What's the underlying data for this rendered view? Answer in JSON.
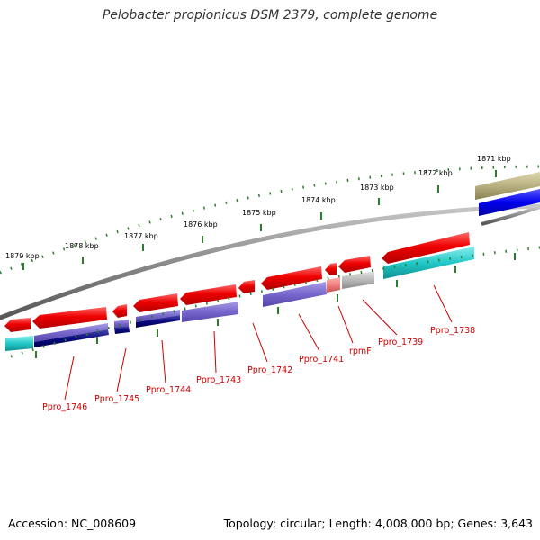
{
  "title": "Pelobacter propionicus DSM 2379, complete genome",
  "footer": {
    "accession": "Accession: NC_008609",
    "summary": "Topology: circular; Length: 4,008,000 bp; Genes: 3,643"
  },
  "colors": {
    "backbone": "#8a8a8a",
    "tick": "#2e7d2e",
    "forward_cds": "#ee0000",
    "gene_label": "#cc0000",
    "cds_purple": "#7766cc",
    "cds_navy": "#0a0a80",
    "cds_cyan": "#22c8c8",
    "cds_gray": "#b8b8b8",
    "cds_salmon": "#f08080",
    "cds_blue": "#0000ee",
    "cds_olive": "#b8b080"
  },
  "scale_labels": [
    "1871 kbp",
    "1872 kbp",
    "1873 kbp",
    "1874 kbp",
    "1875 kbp",
    "1876 kbp",
    "1877 kbp",
    "1878 kbp",
    "1879 kbp"
  ],
  "genes": [
    "Ppro_1738",
    "rpmF",
    "Ppro_1739",
    "Ppro_1741",
    "Ppro_1742",
    "Ppro_1743",
    "Ppro_1744",
    "Ppro_1745",
    "Ppro_1746"
  ]
}
